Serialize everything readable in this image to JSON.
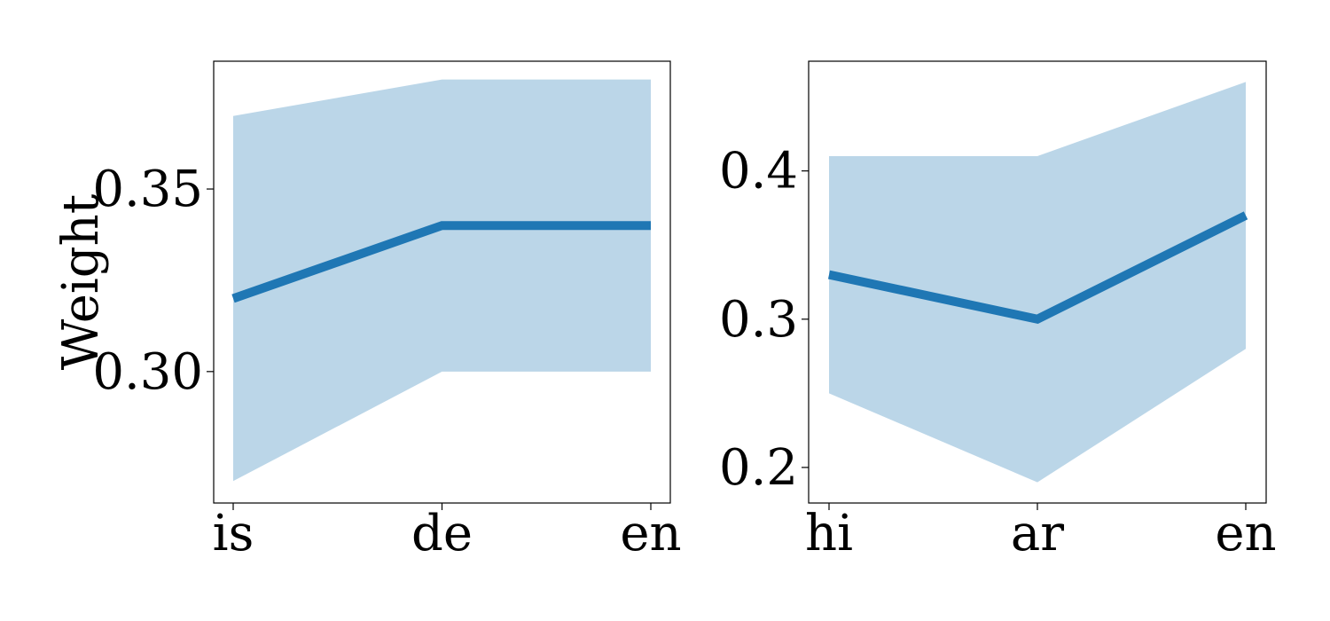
{
  "chart_data": [
    {
      "type": "line",
      "x": [
        "is",
        "de",
        "en"
      ],
      "ylabel": "Weight",
      "ylim": [
        0.264,
        0.385
      ],
      "yticks": [
        0.3,
        0.35
      ],
      "ytick_labels": [
        "0.30",
        "0.35"
      ],
      "series": [
        {
          "values": [
            0.32,
            0.34,
            0.34
          ],
          "lower": [
            0.27,
            0.3,
            0.3
          ],
          "upper": [
            0.37,
            0.38,
            0.38
          ]
        }
      ],
      "line_color": "#1f77b4",
      "band_color": "#bbd6e8",
      "grid": false
    },
    {
      "type": "line",
      "x": [
        "hi",
        "ar",
        "en"
      ],
      "ylabel": "",
      "ylim": [
        0.176,
        0.474
      ],
      "yticks": [
        0.2,
        0.3,
        0.4
      ],
      "ytick_labels": [
        "0.2",
        "0.3",
        "0.4"
      ],
      "series": [
        {
          "values": [
            0.33,
            0.3,
            0.37
          ],
          "lower": [
            0.25,
            0.19,
            0.28
          ],
          "upper": [
            0.41,
            0.41,
            0.46
          ]
        }
      ],
      "line_color": "#1f77b4",
      "band_color": "#bbd6e8",
      "grid": false
    }
  ]
}
